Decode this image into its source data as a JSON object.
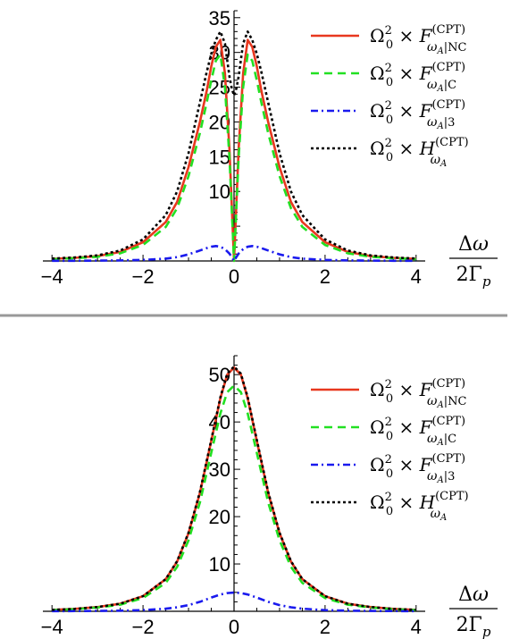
{
  "chart_data": [
    {
      "type": "line",
      "title": "",
      "xlabel_num": "Δω",
      "xlabel_den": "2Γp",
      "xlim": [
        -4.2,
        4.2
      ],
      "ylim": [
        0,
        36
      ],
      "x_ticks": [
        -4,
        -2,
        0,
        2,
        4
      ],
      "x_tick_labels": [
        "−4",
        "−2",
        "0",
        "2",
        "4"
      ],
      "y_ticks": [
        10,
        15,
        20,
        25,
        30,
        35
      ],
      "y_tick_labels": [
        "10",
        "15",
        "20",
        "25",
        "30",
        "35"
      ],
      "grid": false,
      "legend_position": "top-right",
      "x": [
        -4,
        -3.5,
        -3,
        -2.5,
        -2,
        -1.5,
        -1.25,
        -1,
        -0.75,
        -0.6,
        -0.5,
        -0.4,
        -0.3,
        -0.2,
        -0.1,
        -0.05,
        0,
        0.05,
        0.1,
        0.2,
        0.3,
        0.4,
        0.5,
        0.6,
        0.75,
        1,
        1.25,
        1.5,
        2,
        2.5,
        3,
        3.5,
        4
      ],
      "series": [
        {
          "name": "Ω0² × F(CPT)ωA|NC",
          "color": "#e8381f",
          "dash": "solid",
          "values": [
            0.3,
            0.45,
            0.7,
            1.3,
            2.7,
            5.6,
            8.5,
            13.5,
            20,
            24.5,
            28,
            30.8,
            31.8,
            27,
            16,
            8,
            0,
            8,
            16,
            27,
            31.8,
            30.8,
            28,
            24.5,
            20,
            13.5,
            8.5,
            5.6,
            2.7,
            1.3,
            0.7,
            0.45,
            0.3
          ]
        },
        {
          "name": "Ω0² × F(CPT)ωA|C",
          "color": "#22e022",
          "dash": "dashed",
          "values": [
            0.25,
            0.4,
            0.6,
            1.1,
            2.3,
            4.9,
            7.6,
            12.2,
            18.4,
            22.8,
            26,
            28.8,
            29.7,
            25,
            14.8,
            7.4,
            0,
            7.4,
            14.8,
            25,
            29.7,
            28.8,
            26,
            22.8,
            18.4,
            12.2,
            7.6,
            4.9,
            2.3,
            1.1,
            0.6,
            0.4,
            0.25
          ]
        },
        {
          "name": "Ω0² × F(CPT)ωA|3",
          "color": "#1a1aee",
          "dash": "dashdot",
          "values": [
            0.02,
            0.03,
            0.05,
            0.08,
            0.15,
            0.33,
            0.55,
            0.95,
            1.5,
            1.85,
            2.05,
            2.15,
            2.05,
            1.7,
            1.05,
            0.55,
            0,
            0.55,
            1.05,
            1.7,
            2.05,
            2.15,
            2.05,
            1.85,
            1.5,
            0.95,
            0.55,
            0.33,
            0.15,
            0.08,
            0.05,
            0.03,
            0.02
          ]
        },
        {
          "name": "Ω0² × H(CPT)ωA",
          "color": "#000000",
          "dash": "dotted",
          "values": [
            0.35,
            0.5,
            0.8,
            1.5,
            3.1,
            6.6,
            10,
            15.5,
            22.8,
            27.2,
            29.8,
            31.8,
            33,
            31.3,
            26.5,
            24.8,
            23.8,
            24.8,
            26.5,
            31.3,
            33,
            31.8,
            29.8,
            27.2,
            22.8,
            15.5,
            10,
            6.6,
            3.1,
            1.5,
            0.8,
            0.5,
            0.35
          ]
        }
      ]
    },
    {
      "type": "line",
      "title": "",
      "xlabel_num": "Δω",
      "xlabel_den": "2Γp",
      "xlim": [
        -4.2,
        4.2
      ],
      "ylim": [
        0,
        54
      ],
      "x_ticks": [
        -4,
        -2,
        0,
        2,
        4
      ],
      "x_tick_labels": [
        "−4",
        "−2",
        "0",
        "2",
        "4"
      ],
      "y_ticks": [
        10,
        20,
        30,
        40,
        50
      ],
      "y_tick_labels": [
        "10",
        "20",
        "30",
        "40",
        "50"
      ],
      "grid": false,
      "legend_position": "top-right",
      "x": [
        -4,
        -3.5,
        -3,
        -2.5,
        -2,
        -1.5,
        -1.25,
        -1,
        -0.75,
        -0.5,
        -0.3,
        -0.15,
        0,
        0.15,
        0.3,
        0.5,
        0.75,
        1,
        1.25,
        1.5,
        2,
        2.5,
        3,
        3.5,
        4
      ],
      "series": [
        {
          "name": "Ω0² × F(CPT)ωA|NC",
          "color": "#e8381f",
          "dash": "solid",
          "values": [
            0.3,
            0.5,
            0.9,
            1.6,
            3.2,
            6.8,
            10.5,
            16.5,
            25,
            36,
            45,
            50,
            51.5,
            50,
            45,
            36,
            25,
            16.5,
            10.5,
            6.8,
            3.2,
            1.6,
            0.9,
            0.5,
            0.3
          ]
        },
        {
          "name": "Ω0² × F(CPT)ωA|C",
          "color": "#22e022",
          "dash": "dashed",
          "values": [
            0.25,
            0.45,
            0.8,
            1.4,
            2.8,
            6,
            9.4,
            15,
            23,
            33.5,
            41.8,
            46.3,
            47.7,
            46.3,
            41.8,
            33.5,
            23,
            15,
            9.4,
            6,
            2.8,
            1.4,
            0.8,
            0.45,
            0.25
          ]
        },
        {
          "name": "Ω0² × F(CPT)ωA|3",
          "color": "#1a1aee",
          "dash": "dashdot",
          "values": [
            0.03,
            0.05,
            0.08,
            0.13,
            0.25,
            0.55,
            0.85,
            1.3,
            2,
            2.9,
            3.55,
            3.85,
            3.95,
            3.85,
            3.55,
            2.9,
            2,
            1.3,
            0.85,
            0.55,
            0.25,
            0.13,
            0.08,
            0.05,
            0.03
          ]
        },
        {
          "name": "Ω0² × H(CPT)ωA",
          "color": "#000000",
          "dash": "dotted",
          "values": [
            0.3,
            0.5,
            0.9,
            1.6,
            3.2,
            6.8,
            10.6,
            16.6,
            25.2,
            36.2,
            45.2,
            50.2,
            51.7,
            50.2,
            45.2,
            36.2,
            25.2,
            16.6,
            10.6,
            6.8,
            3.2,
            1.6,
            0.9,
            0.5,
            0.3
          ]
        }
      ]
    }
  ],
  "legend": [
    {
      "omega": "Ω",
      "sub0": "0",
      "sup2": "2",
      "times": "×",
      "fn": "F",
      "sup": "(CPT)",
      "sub_main": "ω",
      "sub_sub": "A",
      "sub_tail": "|NC"
    },
    {
      "omega": "Ω",
      "sub0": "0",
      "sup2": "2",
      "times": "×",
      "fn": "F",
      "sup": "(CPT)",
      "sub_main": "ω",
      "sub_sub": "A",
      "sub_tail": "|C"
    },
    {
      "omega": "Ω",
      "sub0": "0",
      "sup2": "2",
      "times": "×",
      "fn": "F",
      "sup": "(CPT)",
      "sub_main": "ω",
      "sub_sub": "A",
      "sub_tail": "|3"
    },
    {
      "omega": "Ω",
      "sub0": "0",
      "sup2": "2",
      "times": "×",
      "fn": "H",
      "sup": "(CPT)",
      "sub_main": "ω",
      "sub_sub": "A",
      "sub_tail": ""
    }
  ],
  "divider_color": "#999999"
}
